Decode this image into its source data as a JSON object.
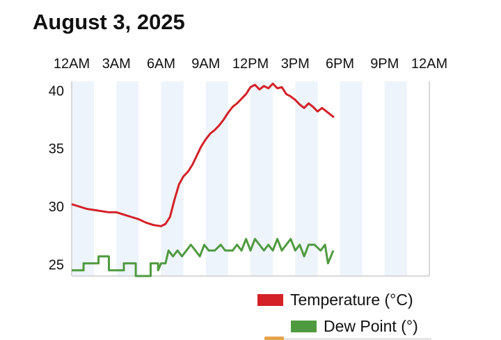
{
  "header": {
    "title": "August 3, 2025"
  },
  "colors": {
    "temperature": "#d42027",
    "dew_point": "#4f9a3f",
    "stripe": "#eef4fb",
    "axis": "#d8d8d8",
    "marker": "#e8a24a"
  },
  "chart_data": {
    "type": "line",
    "title": "August 3, 2025",
    "x_axis": {
      "ticks": [
        "12AM",
        "3AM",
        "6AM",
        "9AM",
        "12PM",
        "3PM",
        "6PM",
        "9PM",
        "12AM"
      ],
      "range_hours": [
        0,
        24
      ],
      "position": "top"
    },
    "y_axis": {
      "ticks": [
        25,
        30,
        35,
        40
      ],
      "range": [
        24.0,
        40.8
      ]
    },
    "grid": "alternating vertical stripes every 1.5 hours",
    "legend_position": "bottom-right",
    "series": [
      {
        "name": "Temperature (°C)",
        "color": "#d42027",
        "points": [
          [
            0,
            30.2
          ],
          [
            0.5,
            30.0
          ],
          [
            1,
            29.8
          ],
          [
            1.5,
            29.7
          ],
          [
            2,
            29.6
          ],
          [
            2.5,
            29.5
          ],
          [
            3,
            29.5
          ],
          [
            3.5,
            29.3
          ],
          [
            4,
            29.1
          ],
          [
            4.5,
            28.9
          ],
          [
            5,
            28.6
          ],
          [
            5.5,
            28.4
          ],
          [
            6,
            28.3
          ],
          [
            6.3,
            28.5
          ],
          [
            6.6,
            29.1
          ],
          [
            6.9,
            30.6
          ],
          [
            7.2,
            31.9
          ],
          [
            7.5,
            32.6
          ],
          [
            7.8,
            33.0
          ],
          [
            8.1,
            33.6
          ],
          [
            8.4,
            34.4
          ],
          [
            8.7,
            35.2
          ],
          [
            9.0,
            35.8
          ],
          [
            9.3,
            36.3
          ],
          [
            9.6,
            36.6
          ],
          [
            9.9,
            37.0
          ],
          [
            10.2,
            37.5
          ],
          [
            10.5,
            38.1
          ],
          [
            10.8,
            38.6
          ],
          [
            11.1,
            38.9
          ],
          [
            11.4,
            39.3
          ],
          [
            11.7,
            39.7
          ],
          [
            12.0,
            40.3
          ],
          [
            12.3,
            40.5
          ],
          [
            12.6,
            40.1
          ],
          [
            12.9,
            40.4
          ],
          [
            13.2,
            40.2
          ],
          [
            13.5,
            40.6
          ],
          [
            13.8,
            40.2
          ],
          [
            14.1,
            40.3
          ],
          [
            14.4,
            39.7
          ],
          [
            14.7,
            39.5
          ],
          [
            15.0,
            39.2
          ],
          [
            15.3,
            38.8
          ],
          [
            15.6,
            38.5
          ],
          [
            15.9,
            38.9
          ],
          [
            16.2,
            38.6
          ],
          [
            16.5,
            38.2
          ],
          [
            16.8,
            38.5
          ],
          [
            17.1,
            38.2
          ],
          [
            17.4,
            37.9
          ],
          [
            17.6,
            37.7
          ]
        ]
      },
      {
        "name": "Dew Point (°)",
        "color": "#4f9a3f",
        "points": [
          [
            0,
            24.5
          ],
          [
            0.8,
            24.5
          ],
          [
            0.8,
            25.1
          ],
          [
            1.8,
            25.1
          ],
          [
            1.8,
            25.7
          ],
          [
            2.5,
            25.7
          ],
          [
            2.5,
            24.5
          ],
          [
            3.5,
            24.5
          ],
          [
            3.5,
            25.1
          ],
          [
            4.3,
            25.1
          ],
          [
            4.3,
            24.0
          ],
          [
            5.3,
            24.0
          ],
          [
            5.3,
            25.1
          ],
          [
            5.8,
            25.1
          ],
          [
            5.8,
            24.5
          ],
          [
            6.0,
            25.1
          ],
          [
            6.3,
            25.1
          ],
          [
            6.5,
            26.2
          ],
          [
            6.8,
            25.7
          ],
          [
            7.1,
            26.2
          ],
          [
            7.4,
            25.7
          ],
          [
            7.7,
            26.2
          ],
          [
            8.0,
            26.7
          ],
          [
            8.3,
            26.2
          ],
          [
            8.6,
            25.7
          ],
          [
            8.9,
            26.7
          ],
          [
            9.2,
            26.2
          ],
          [
            9.6,
            26.2
          ],
          [
            10.0,
            26.7
          ],
          [
            10.3,
            26.2
          ],
          [
            10.8,
            26.2
          ],
          [
            11.1,
            26.7
          ],
          [
            11.4,
            26.2
          ],
          [
            11.7,
            27.2
          ],
          [
            12.0,
            26.2
          ],
          [
            12.3,
            27.2
          ],
          [
            12.6,
            26.7
          ],
          [
            12.9,
            26.2
          ],
          [
            13.2,
            26.7
          ],
          [
            13.5,
            26.2
          ],
          [
            13.8,
            27.2
          ],
          [
            14.1,
            26.2
          ],
          [
            14.4,
            26.7
          ],
          [
            14.7,
            27.2
          ],
          [
            15.0,
            26.2
          ],
          [
            15.3,
            26.7
          ],
          [
            15.6,
            25.7
          ],
          [
            15.9,
            26.7
          ],
          [
            16.3,
            26.7
          ],
          [
            16.7,
            26.2
          ],
          [
            17.0,
            26.7
          ],
          [
            17.2,
            25.1
          ],
          [
            17.4,
            25.7
          ],
          [
            17.55,
            26.2
          ]
        ]
      }
    ]
  }
}
